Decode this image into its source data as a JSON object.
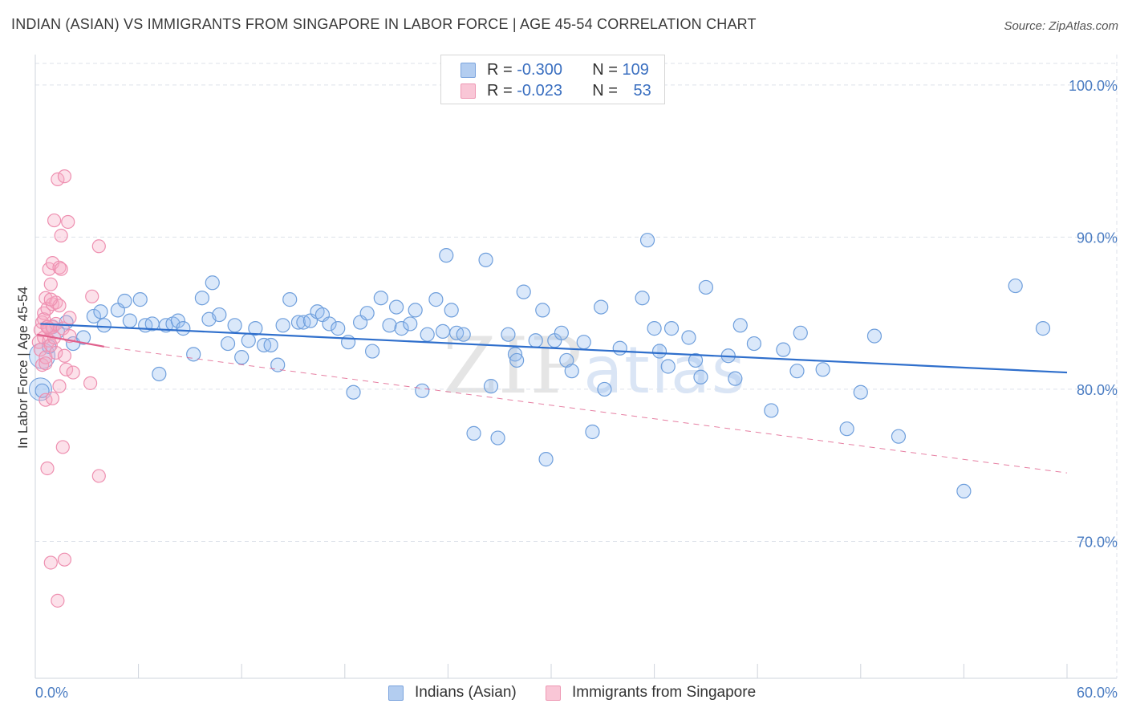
{
  "header": {
    "title": "INDIAN (ASIAN) VS IMMIGRANTS FROM SINGAPORE IN LABOR FORCE | AGE 45-54 CORRELATION CHART",
    "source": "Source: ZipAtlas.com"
  },
  "watermark": {
    "zip": "ZIP",
    "atlas": "atlas"
  },
  "legend": {
    "rows": [
      {
        "r_label": "R =",
        "r_value": "-0.300",
        "n_label": "N =",
        "n_value": "109",
        "color": "#a9c6ee"
      },
      {
        "r_label": "R =",
        "r_value": "-0.023",
        "n_label": "N =",
        "n_value": "53",
        "color": "#f6b8cc"
      }
    ]
  },
  "colors": {
    "blue_fill": "rgba(150,190,240,0.35)",
    "blue_stroke": "#6f9fdc",
    "blue_line": "#2f6fcc",
    "pink_fill": "rgba(245,170,195,0.35)",
    "pink_stroke": "#ee8fb0",
    "pink_line": "#e0608c",
    "grid": "#dde2ea",
    "tick_text": "#4a7cc2"
  },
  "bottom_legend": {
    "series1": "Indians (Asian)",
    "series2": "Immigrants from Singapore"
  },
  "chart_data": {
    "type": "scatter",
    "title": "INDIAN (ASIAN) VS IMMIGRANTS FROM SINGAPORE IN LABOR FORCE | AGE 45-54 CORRELATION CHART",
    "xlabel": "",
    "ylabel": "In Labor Force | Age 45-54",
    "xlim": [
      0,
      60
    ],
    "ylim": [
      61,
      102
    ],
    "x_tick_labels": {
      "min": "0.0%",
      "max": "60.0%"
    },
    "y_ticks": [
      {
        "value": 100,
        "label": "100.0%"
      },
      {
        "value": 90,
        "label": "90.0%"
      },
      {
        "value": 80,
        "label": "80.0%"
      },
      {
        "value": 70,
        "label": "70.0%"
      }
    ],
    "series": [
      {
        "name": "Indians (Asian)",
        "R": -0.3,
        "N": 109,
        "trend": {
          "x0": 0.3,
          "y0": 84.3,
          "x1": 60,
          "y1": 81.1
        },
        "points": [
          [
            0.4,
            79.9
          ],
          [
            0.8,
            82.8
          ],
          [
            1.0,
            84.1
          ],
          [
            1.3,
            83.8
          ],
          [
            1.8,
            84.4
          ],
          [
            2.2,
            83.0
          ],
          [
            2.8,
            83.4
          ],
          [
            3.4,
            84.8
          ],
          [
            3.8,
            85.1
          ],
          [
            4.0,
            84.2
          ],
          [
            4.8,
            85.2
          ],
          [
            5.2,
            85.8
          ],
          [
            5.5,
            84.5
          ],
          [
            6.1,
            85.9
          ],
          [
            6.4,
            84.2
          ],
          [
            6.8,
            84.3
          ],
          [
            7.2,
            81.0
          ],
          [
            7.6,
            84.2
          ],
          [
            8.0,
            84.3
          ],
          [
            8.3,
            84.5
          ],
          [
            8.6,
            84.0
          ],
          [
            9.2,
            82.3
          ],
          [
            9.7,
            86.0
          ],
          [
            10.1,
            84.6
          ],
          [
            10.3,
            87.0
          ],
          [
            10.7,
            84.9
          ],
          [
            11.2,
            83.0
          ],
          [
            11.6,
            84.2
          ],
          [
            12.0,
            82.1
          ],
          [
            12.4,
            83.2
          ],
          [
            12.8,
            84.0
          ],
          [
            13.3,
            82.9
          ],
          [
            13.7,
            82.9
          ],
          [
            14.1,
            81.6
          ],
          [
            14.4,
            84.2
          ],
          [
            14.8,
            85.9
          ],
          [
            15.3,
            84.4
          ],
          [
            15.6,
            84.4
          ],
          [
            16.0,
            84.5
          ],
          [
            16.4,
            85.1
          ],
          [
            16.7,
            84.9
          ],
          [
            17.1,
            84.3
          ],
          [
            17.6,
            84.0
          ],
          [
            18.2,
            83.1
          ],
          [
            18.5,
            79.8
          ],
          [
            18.9,
            84.4
          ],
          [
            19.3,
            85.0
          ],
          [
            19.6,
            82.5
          ],
          [
            20.1,
            86.0
          ],
          [
            20.6,
            84.2
          ],
          [
            21.0,
            85.4
          ],
          [
            21.3,
            84.0
          ],
          [
            21.8,
            84.3
          ],
          [
            22.1,
            85.2
          ],
          [
            22.5,
            79.9
          ],
          [
            22.8,
            83.6
          ],
          [
            23.3,
            85.9
          ],
          [
            23.7,
            83.8
          ],
          [
            23.9,
            88.8
          ],
          [
            24.2,
            85.2
          ],
          [
            24.5,
            83.7
          ],
          [
            24.9,
            83.6
          ],
          [
            25.5,
            77.1
          ],
          [
            26.2,
            88.5
          ],
          [
            26.5,
            80.2
          ],
          [
            26.9,
            76.8
          ],
          [
            27.5,
            83.6
          ],
          [
            27.9,
            82.3
          ],
          [
            28.0,
            81.9
          ],
          [
            28.4,
            86.4
          ],
          [
            29.1,
            83.2
          ],
          [
            29.5,
            85.2
          ],
          [
            29.7,
            75.4
          ],
          [
            30.2,
            83.2
          ],
          [
            30.6,
            83.7
          ],
          [
            30.9,
            81.9
          ],
          [
            31.2,
            81.2
          ],
          [
            31.9,
            83.1
          ],
          [
            32.4,
            77.2
          ],
          [
            32.9,
            85.4
          ],
          [
            33.1,
            80.0
          ],
          [
            34.0,
            82.7
          ],
          [
            35.3,
            86.0
          ],
          [
            35.6,
            89.8
          ],
          [
            36.0,
            84.0
          ],
          [
            36.3,
            82.5
          ],
          [
            36.8,
            81.5
          ],
          [
            37.0,
            84.0
          ],
          [
            38.0,
            83.4
          ],
          [
            38.4,
            81.9
          ],
          [
            38.7,
            80.8
          ],
          [
            39.0,
            86.7
          ],
          [
            40.3,
            82.2
          ],
          [
            40.7,
            80.7
          ],
          [
            41.0,
            84.2
          ],
          [
            41.8,
            83.0
          ],
          [
            42.8,
            78.6
          ],
          [
            43.5,
            82.6
          ],
          [
            44.3,
            81.2
          ],
          [
            44.5,
            83.7
          ],
          [
            45.8,
            81.3
          ],
          [
            47.2,
            77.4
          ],
          [
            48.0,
            79.8
          ],
          [
            48.8,
            83.5
          ],
          [
            50.2,
            76.9
          ],
          [
            54.0,
            73.3
          ],
          [
            57.0,
            86.8
          ],
          [
            58.6,
            84.0
          ]
        ]
      },
      {
        "name": "Immigrants from Singapore",
        "R": -0.023,
        "N": 53,
        "trend_solid": {
          "x0": 0.1,
          "y0": 83.6,
          "x1": 4.0,
          "y1": 82.8
        },
        "trend_dashed": {
          "x0": 4.0,
          "y0": 82.8,
          "x1": 60,
          "y1": 74.5
        },
        "points": [
          [
            0.2,
            83.1
          ],
          [
            0.3,
            83.9
          ],
          [
            0.3,
            82.6
          ],
          [
            0.4,
            84.4
          ],
          [
            0.4,
            81.6
          ],
          [
            0.5,
            85.0
          ],
          [
            0.5,
            83.4
          ],
          [
            0.5,
            84.6
          ],
          [
            0.6,
            86.0
          ],
          [
            0.6,
            82.1
          ],
          [
            0.6,
            79.3
          ],
          [
            0.7,
            85.3
          ],
          [
            0.7,
            84.1
          ],
          [
            0.7,
            74.8
          ],
          [
            0.8,
            83.2
          ],
          [
            0.8,
            87.9
          ],
          [
            0.8,
            84.0
          ],
          [
            0.9,
            86.9
          ],
          [
            0.9,
            82.9
          ],
          [
            0.9,
            68.6
          ],
          [
            1.0,
            88.3
          ],
          [
            1.0,
            85.6
          ],
          [
            1.0,
            84.1
          ],
          [
            1.0,
            79.4
          ],
          [
            1.1,
            91.1
          ],
          [
            1.1,
            83.4
          ],
          [
            1.2,
            85.7
          ],
          [
            1.2,
            84.3
          ],
          [
            1.2,
            82.4
          ],
          [
            1.3,
            66.1
          ],
          [
            1.3,
            93.8
          ],
          [
            1.4,
            85.5
          ],
          [
            1.4,
            80.2
          ],
          [
            1.4,
            88.0
          ],
          [
            1.5,
            90.1
          ],
          [
            1.5,
            87.9
          ],
          [
            1.6,
            76.2
          ],
          [
            1.6,
            84.0
          ],
          [
            1.7,
            94.0
          ],
          [
            1.7,
            68.8
          ],
          [
            1.7,
            82.2
          ],
          [
            1.8,
            81.3
          ],
          [
            1.9,
            91.0
          ],
          [
            2.0,
            83.5
          ],
          [
            2.0,
            84.7
          ],
          [
            2.2,
            81.1
          ],
          [
            3.2,
            80.4
          ],
          [
            3.3,
            86.1
          ],
          [
            3.7,
            89.4
          ],
          [
            3.7,
            74.3
          ],
          [
            0.6,
            81.7
          ],
          [
            0.7,
            84.1
          ],
          [
            0.9,
            85.9
          ]
        ]
      }
    ]
  }
}
